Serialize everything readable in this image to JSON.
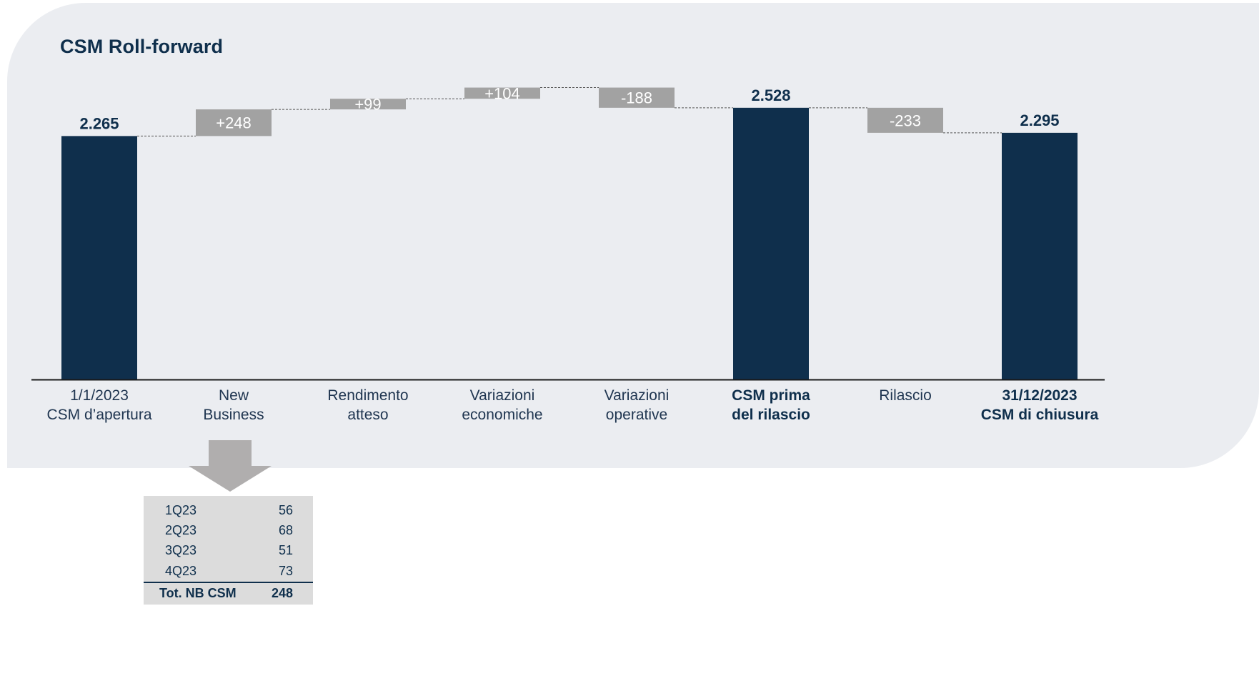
{
  "title": "CSM Roll-forward",
  "colors": {
    "panel_background": "#ebedf1",
    "total_bar": "#0f2f4c",
    "delta_bar": "#a2a2a2",
    "delta_label": "#ffffff",
    "axis": "#1a1a1a",
    "connector": "#555555",
    "table_background": "#dcdcdc",
    "arrow": "#b0aeae"
  },
  "chart_data": {
    "type": "waterfall",
    "categories": [
      [
        "1/1/2023",
        "CSM d’apertura"
      ],
      [
        "New",
        "Business"
      ],
      [
        "Rendimento",
        "atteso"
      ],
      [
        "Variazioni",
        "economiche"
      ],
      [
        "Variazioni",
        "operative"
      ],
      [
        "CSM prima",
        "del rilascio"
      ],
      [
        "Rilascio"
      ],
      [
        "31/12/2023",
        "CSM di chiusura"
      ]
    ],
    "bold_categories": [
      5,
      7
    ],
    "values": [
      2265,
      248,
      99,
      104,
      -188,
      2528,
      -233,
      2295
    ],
    "kinds": [
      "total",
      "delta",
      "delta",
      "delta",
      "delta",
      "total",
      "delta",
      "total"
    ],
    "labels": [
      "2.265",
      "+248",
      "+99",
      "+104",
      "-188",
      "2.528",
      "-233",
      "2.295"
    ],
    "ylim": [
      0,
      2600
    ],
    "grid": false,
    "legend": "none"
  },
  "new_business_breakdown": {
    "rows": [
      {
        "quarter": "1Q23",
        "value": "56"
      },
      {
        "quarter": "2Q23",
        "value": "68"
      },
      {
        "quarter": "3Q23",
        "value": "51"
      },
      {
        "quarter": "4Q23",
        "value": "73"
      }
    ],
    "total": {
      "label": "Tot. NB CSM",
      "value": "248"
    }
  }
}
